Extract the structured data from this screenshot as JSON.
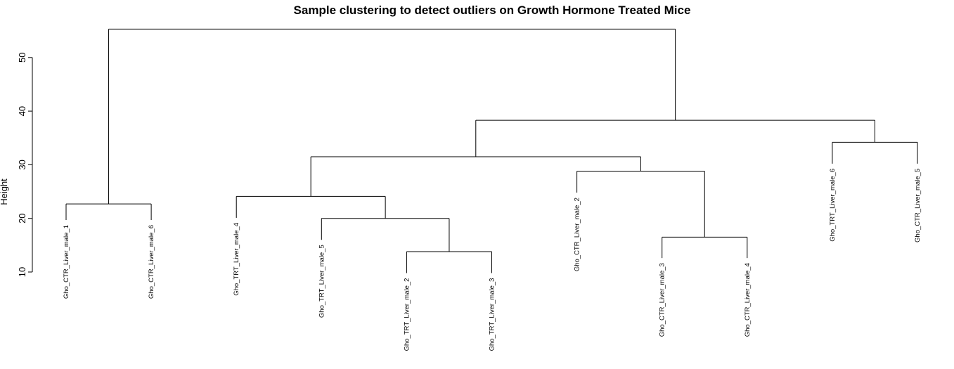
{
  "chart_data": {
    "type": "dendrogram",
    "title": "Sample clustering to detect outliers on Growth Hormone Treated Mice",
    "ylabel": "Height",
    "xlabel": "",
    "ylim": [
      10,
      57
    ],
    "yticks": [
      10,
      20,
      30,
      40,
      50
    ],
    "leaves": [
      {
        "label": "Gho_CTR_Liver_male_1",
        "height": 19.7
      },
      {
        "label": "Gho_CTR_Liver_male_6",
        "height": 19.7
      },
      {
        "label": "Gho_TRT_Liver_male_4",
        "height": 20.1
      },
      {
        "label": "Gho_TRT_Liver_male_5",
        "height": 16.0
      },
      {
        "label": "Gho_TRT_Liver_male_2",
        "height": 9.8
      },
      {
        "label": "Gho_TRT_Liver_male_3",
        "height": 9.8
      },
      {
        "label": "Gho_CTR_Liver_male_2",
        "height": 24.8
      },
      {
        "label": "Gho_CTR_Liver_male_3",
        "height": 12.6
      },
      {
        "label": "Gho_CTR_Liver_male_4",
        "height": 12.6
      },
      {
        "label": "Gho_TRT_Liver_male_6",
        "height": 30.2
      },
      {
        "label": "Gho_CTR_Liver_male_5",
        "height": 30.2
      }
    ],
    "merges": [
      {
        "id": "m1",
        "left": "L4",
        "right": "L5",
        "height": 13.8
      },
      {
        "id": "m2",
        "left": "L7",
        "right": "L8",
        "height": 16.5
      },
      {
        "id": "m3",
        "left": "L3",
        "right": "m1",
        "height": 20.0
      },
      {
        "id": "m4",
        "left": "L0",
        "right": "L1",
        "height": 22.7
      },
      {
        "id": "m5",
        "left": "L2",
        "right": "m3",
        "height": 24.1
      },
      {
        "id": "m6",
        "left": "L6",
        "right": "m2",
        "height": 28.8
      },
      {
        "id": "m7",
        "left": "m5",
        "right": "m6",
        "height": 31.5
      },
      {
        "id": "m8",
        "left": "L9",
        "right": "L10",
        "height": 34.2
      },
      {
        "id": "m9",
        "left": "m7",
        "right": "m8",
        "height": 38.3
      },
      {
        "id": "m10",
        "left": "m4",
        "right": "m9",
        "height": 55.3
      }
    ]
  }
}
